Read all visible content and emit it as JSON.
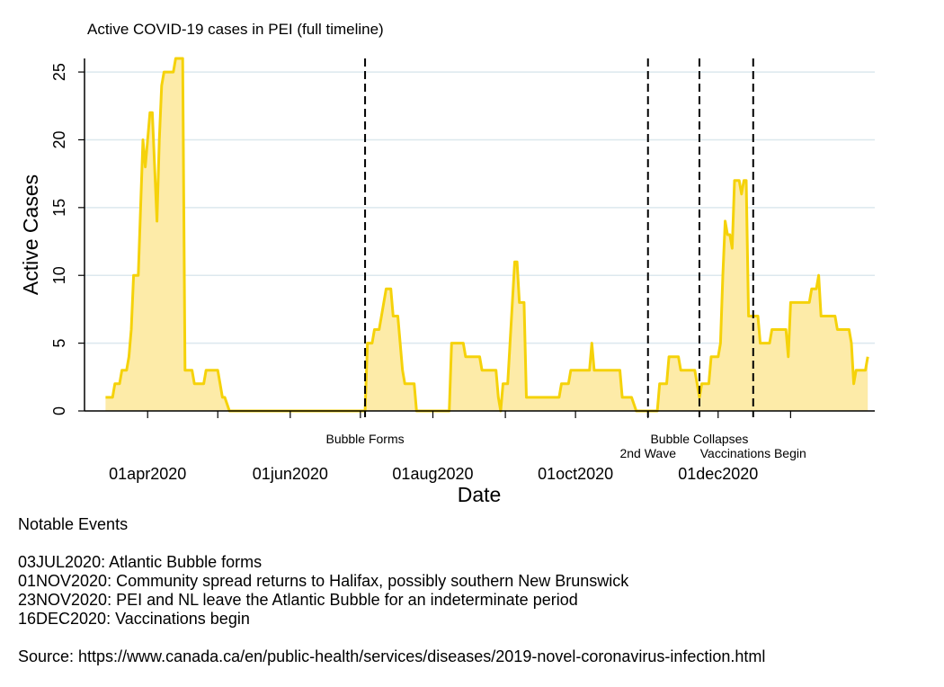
{
  "chart_data": {
    "type": "area",
    "title": "Active COVID-19 cases in PEI (full timeline)",
    "xlabel": "Date",
    "ylabel": "Active Cases",
    "ylim": [
      0,
      26
    ],
    "yticks": [
      0,
      5,
      10,
      15,
      20,
      25
    ],
    "xlim": [
      "2020-03-05",
      "2021-02-06"
    ],
    "xticks": [
      {
        "date": "2020-04-01",
        "label": "01apr2020"
      },
      {
        "date": "2020-06-01",
        "label": "01jun2020"
      },
      {
        "date": "2020-08-01",
        "label": "01aug2020"
      },
      {
        "date": "2020-10-01",
        "label": "01oct2020"
      },
      {
        "date": "2020-12-01",
        "label": "01dec2020"
      }
    ],
    "grid": true,
    "colors": {
      "line": "#F5D20A",
      "fill": "#FDEBA8",
      "grid": "#DCE8EE",
      "event": "#000000"
    },
    "events": [
      {
        "date": "2020-07-03",
        "label": "Bubble Forms",
        "row": 0
      },
      {
        "date": "2020-11-01",
        "label": "2nd Wave",
        "row": 1
      },
      {
        "date": "2020-11-23",
        "label": "Bubble Collapses",
        "row": 0
      },
      {
        "date": "2020-12-16",
        "label": "Vaccinations Begin",
        "row": 1
      }
    ],
    "series": [
      {
        "values": [
          [
            "2020-03-14",
            1
          ],
          [
            "2020-03-17",
            1
          ],
          [
            "2020-03-18",
            2
          ],
          [
            "2020-03-20",
            2
          ],
          [
            "2020-03-21",
            3
          ],
          [
            "2020-03-23",
            3
          ],
          [
            "2020-03-24",
            4
          ],
          [
            "2020-03-25",
            6
          ],
          [
            "2020-03-26",
            10
          ],
          [
            "2020-03-28",
            10
          ],
          [
            "2020-03-29",
            15
          ],
          [
            "2020-03-30",
            20
          ],
          [
            "2020-03-31",
            18
          ],
          [
            "2020-04-01",
            20
          ],
          [
            "2020-04-02",
            22
          ],
          [
            "2020-04-03",
            22
          ],
          [
            "2020-04-04",
            18
          ],
          [
            "2020-04-05",
            14
          ],
          [
            "2020-04-06",
            20
          ],
          [
            "2020-04-07",
            24
          ],
          [
            "2020-04-08",
            25
          ],
          [
            "2020-04-12",
            25
          ],
          [
            "2020-04-13",
            26
          ],
          [
            "2020-04-16",
            26
          ],
          [
            "2020-04-17",
            3
          ],
          [
            "2020-04-20",
            3
          ],
          [
            "2020-04-21",
            2
          ],
          [
            "2020-04-25",
            2
          ],
          [
            "2020-04-26",
            3
          ],
          [
            "2020-05-01",
            3
          ],
          [
            "2020-05-02",
            2
          ],
          [
            "2020-05-03",
            1
          ],
          [
            "2020-05-04",
            1
          ],
          [
            "2020-05-06",
            0
          ],
          [
            "2020-07-03",
            0
          ],
          [
            "2020-07-04",
            5
          ],
          [
            "2020-07-06",
            5
          ],
          [
            "2020-07-07",
            6
          ],
          [
            "2020-07-09",
            6
          ],
          [
            "2020-07-10",
            7
          ],
          [
            "2020-07-12",
            9
          ],
          [
            "2020-07-14",
            9
          ],
          [
            "2020-07-15",
            7
          ],
          [
            "2020-07-17",
            7
          ],
          [
            "2020-07-18",
            5
          ],
          [
            "2020-07-19",
            3
          ],
          [
            "2020-07-20",
            2
          ],
          [
            "2020-07-24",
            2
          ],
          [
            "2020-07-25",
            0
          ],
          [
            "2020-08-08",
            0
          ],
          [
            "2020-08-09",
            5
          ],
          [
            "2020-08-14",
            5
          ],
          [
            "2020-08-15",
            4
          ],
          [
            "2020-08-21",
            4
          ],
          [
            "2020-08-22",
            3
          ],
          [
            "2020-08-28",
            3
          ],
          [
            "2020-08-29",
            1
          ],
          [
            "2020-08-30",
            0
          ],
          [
            "2020-08-31",
            2
          ],
          [
            "2020-09-02",
            2
          ],
          [
            "2020-09-03",
            5
          ],
          [
            "2020-09-05",
            11
          ],
          [
            "2020-09-06",
            11
          ],
          [
            "2020-09-07",
            8
          ],
          [
            "2020-09-09",
            8
          ],
          [
            "2020-09-10",
            1
          ],
          [
            "2020-09-24",
            1
          ],
          [
            "2020-09-25",
            2
          ],
          [
            "2020-09-28",
            2
          ],
          [
            "2020-09-29",
            3
          ],
          [
            "2020-10-07",
            3
          ],
          [
            "2020-10-08",
            5
          ],
          [
            "2020-10-09",
            3
          ],
          [
            "2020-10-20",
            3
          ],
          [
            "2020-10-21",
            1
          ],
          [
            "2020-10-25",
            1
          ],
          [
            "2020-10-27",
            0
          ],
          [
            "2020-11-05",
            0
          ],
          [
            "2020-11-06",
            2
          ],
          [
            "2020-11-09",
            2
          ],
          [
            "2020-11-10",
            4
          ],
          [
            "2020-11-14",
            4
          ],
          [
            "2020-11-15",
            3
          ],
          [
            "2020-11-21",
            3
          ],
          [
            "2020-11-22",
            2
          ],
          [
            "2020-11-23",
            1
          ],
          [
            "2020-11-24",
            2
          ],
          [
            "2020-11-27",
            2
          ],
          [
            "2020-11-28",
            4
          ],
          [
            "2020-12-01",
            4
          ],
          [
            "2020-12-02",
            5
          ],
          [
            "2020-12-03",
            10
          ],
          [
            "2020-12-04",
            14
          ],
          [
            "2020-12-05",
            13
          ],
          [
            "2020-12-06",
            13
          ],
          [
            "2020-12-07",
            12
          ],
          [
            "2020-12-08",
            17
          ],
          [
            "2020-12-10",
            17
          ],
          [
            "2020-12-11",
            16
          ],
          [
            "2020-12-12",
            17
          ],
          [
            "2020-12-13",
            17
          ],
          [
            "2020-12-14",
            7
          ],
          [
            "2020-12-18",
            7
          ],
          [
            "2020-12-19",
            5
          ],
          [
            "2020-12-23",
            5
          ],
          [
            "2020-12-24",
            6
          ],
          [
            "2020-12-30",
            6
          ],
          [
            "2020-12-31",
            4
          ],
          [
            "2021-01-01",
            8
          ],
          [
            "2021-01-09",
            8
          ],
          [
            "2021-01-10",
            9
          ],
          [
            "2021-01-12",
            9
          ],
          [
            "2021-01-13",
            10
          ],
          [
            "2021-01-14",
            7
          ],
          [
            "2021-01-20",
            7
          ],
          [
            "2021-01-21",
            6
          ],
          [
            "2021-01-26",
            6
          ],
          [
            "2021-01-27",
            5
          ],
          [
            "2021-01-28",
            2
          ],
          [
            "2021-01-29",
            3
          ],
          [
            "2021-02-02",
            3
          ],
          [
            "2021-02-03",
            4
          ]
        ]
      }
    ]
  },
  "notes": {
    "heading": "Notable Events",
    "events": [
      "03JUL2020: Atlantic Bubble forms",
      "01NOV2020: Community spread returns to Halifax, possibly southern New Brunswick",
      "23NOV2020: PEI and NL leave the Atlantic Bubble for an indeterminate period",
      "16DEC2020: Vaccinations begin"
    ],
    "source": "Source: https://www.canada.ca/en/public-health/services/diseases/2019-novel-coronavirus-infection.html"
  }
}
